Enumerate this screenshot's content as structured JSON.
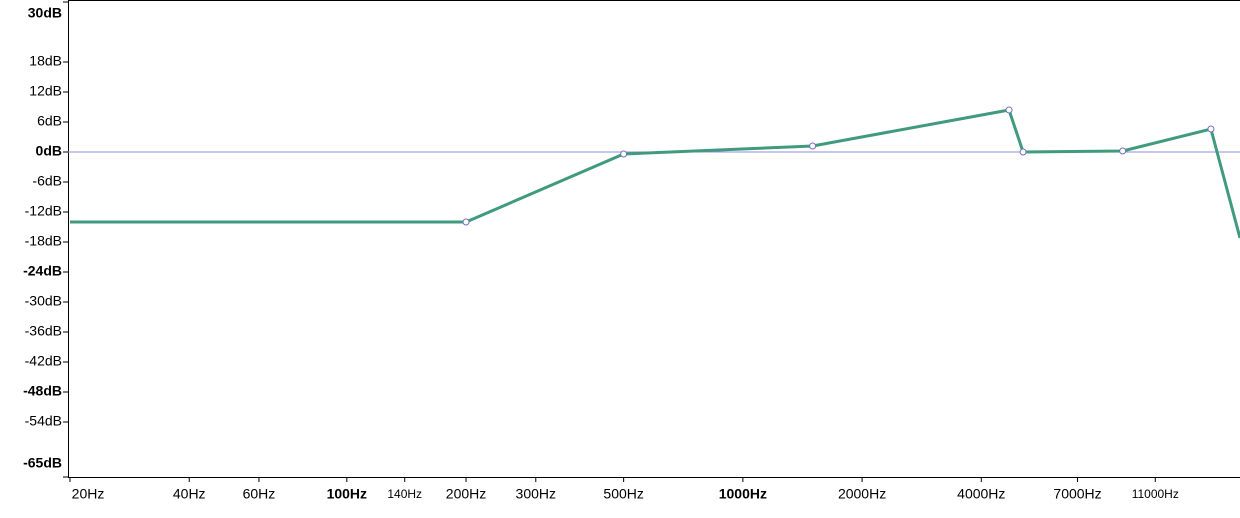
{
  "chart_data": {
    "type": "line",
    "xscale": "log",
    "xlim": [
      20,
      18000
    ],
    "ylim": [
      -65,
      30
    ],
    "xticks": [
      {
        "value": 20,
        "label": "20Hz"
      },
      {
        "value": 40,
        "label": "40Hz"
      },
      {
        "value": 60,
        "label": "60Hz"
      },
      {
        "value": 100,
        "label": "100Hz",
        "bold": true
      },
      {
        "value": 140,
        "label": "140Hz",
        "small": true
      },
      {
        "value": 200,
        "label": "200Hz"
      },
      {
        "value": 300,
        "label": "300Hz"
      },
      {
        "value": 500,
        "label": "500Hz"
      },
      {
        "value": 1000,
        "label": "1000Hz",
        "bold": true
      },
      {
        "value": 2000,
        "label": "2000Hz"
      },
      {
        "value": 4000,
        "label": "4000Hz"
      },
      {
        "value": 7000,
        "label": "7000Hz"
      },
      {
        "value": 11000,
        "label": "11000Hz",
        "small": true
      }
    ],
    "yticks": [
      {
        "value": 30,
        "label": "30dB",
        "bold": true
      },
      {
        "value": 18,
        "label": "18dB"
      },
      {
        "value": 12,
        "label": "12dB"
      },
      {
        "value": 6,
        "label": "6dB"
      },
      {
        "value": 0,
        "label": "0dB",
        "bold": true
      },
      {
        "value": -6,
        "label": "-6dB"
      },
      {
        "value": -12,
        "label": "-12dB"
      },
      {
        "value": -18,
        "label": "-18dB"
      },
      {
        "value": -24,
        "label": "-24dB",
        "bold": true
      },
      {
        "value": -30,
        "label": "-30dB"
      },
      {
        "value": -36,
        "label": "-36dB"
      },
      {
        "value": -42,
        "label": "-42dB"
      },
      {
        "value": -48,
        "label": "-48dB",
        "bold": true
      },
      {
        "value": -54,
        "label": "-54dB"
      },
      {
        "value": -65,
        "label": "-65dB",
        "bold": true
      }
    ],
    "hline": {
      "value": 0,
      "color": "#8c8cdc"
    },
    "series": [
      {
        "color": "#3f9a7e",
        "x": [
          20,
          200,
          500,
          1500,
          4700,
          5100,
          9100,
          15200,
          18000
        ],
        "values": [
          -14,
          -14,
          -0.4,
          1.2,
          8.4,
          0,
          0.2,
          4.6,
          -17.2
        ]
      }
    ]
  }
}
